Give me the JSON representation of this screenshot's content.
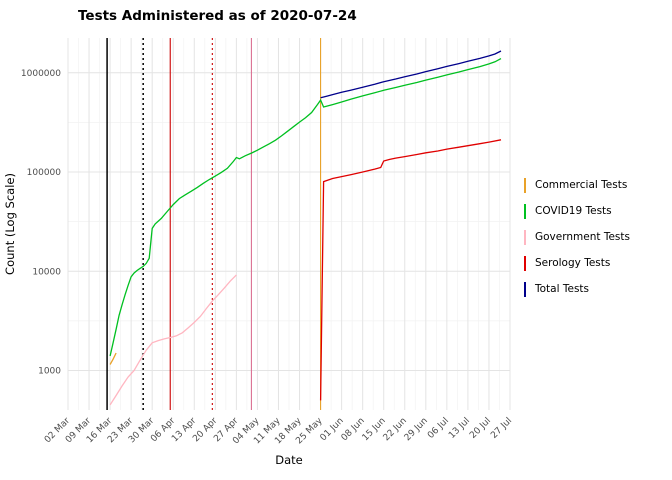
{
  "chart_data": {
    "type": "line",
    "title": "Tests Administered as of 2020-07-24",
    "xlabel": "Date",
    "ylabel": "Count (Log Scale)",
    "x_domain": [
      "2020-03-02",
      "2020-07-27"
    ],
    "ylim": [
      400,
      2240000
    ],
    "x_ticks": [
      "02 Mar",
      "09 Mar",
      "16 Mar",
      "23 Mar",
      "30 Mar",
      "06 Apr",
      "13 Apr",
      "20 Apr",
      "27 Apr",
      "04 May",
      "11 May",
      "18 May",
      "25 May",
      "01 Jun",
      "08 Jun",
      "15 Jun",
      "22 Jun",
      "29 Jun",
      "06 Jul",
      "13 Jul",
      "20 Jul",
      "27 Jul"
    ],
    "y_ticks": [
      {
        "label": "1000",
        "value": 1000
      },
      {
        "label": "10000",
        "value": 10000
      },
      {
        "label": "100000",
        "value": 100000
      },
      {
        "label": "1000000",
        "value": 1000000
      }
    ],
    "y_minor": [
      3162,
      31623,
      316228
    ],
    "grid": true,
    "legend_position": "right",
    "series": [
      {
        "name": "Commercial Tests",
        "color": "#e9a229",
        "points": [
          [
            "2020-03-16",
            1150
          ],
          [
            "2020-03-17",
            1300
          ],
          [
            "2020-03-18",
            1500
          ]
        ]
      },
      {
        "name": "COVID19 Tests",
        "color": "#00c020",
        "points": [
          [
            "2020-03-16",
            1400
          ],
          [
            "2020-03-17",
            1900
          ],
          [
            "2020-03-18",
            2600
          ],
          [
            "2020-03-19",
            3600
          ],
          [
            "2020-03-20",
            4600
          ],
          [
            "2020-03-21",
            5800
          ],
          [
            "2020-03-22",
            7200
          ],
          [
            "2020-03-23",
            8800
          ],
          [
            "2020-03-24",
            9600
          ],
          [
            "2020-03-25",
            10200
          ],
          [
            "2020-03-26",
            10700
          ],
          [
            "2020-03-27",
            11200
          ],
          [
            "2020-03-28",
            12000
          ],
          [
            "2020-03-29",
            13500
          ],
          [
            "2020-03-30",
            27000
          ],
          [
            "2020-03-31",
            30000
          ],
          [
            "2020-04-02",
            34000
          ],
          [
            "2020-04-04",
            40000
          ],
          [
            "2020-04-06",
            47000
          ],
          [
            "2020-04-08",
            54000
          ],
          [
            "2020-04-10",
            59000
          ],
          [
            "2020-04-12",
            64000
          ],
          [
            "2020-04-14",
            70000
          ],
          [
            "2020-04-16",
            77000
          ],
          [
            "2020-04-18",
            84000
          ],
          [
            "2020-04-20",
            91000
          ],
          [
            "2020-04-22",
            99000
          ],
          [
            "2020-04-24",
            109000
          ],
          [
            "2020-04-26",
            128000
          ],
          [
            "2020-04-27",
            140000
          ],
          [
            "2020-04-28",
            136000
          ],
          [
            "2020-04-30",
            146000
          ],
          [
            "2020-05-02",
            155000
          ],
          [
            "2020-05-04",
            166000
          ],
          [
            "2020-05-06",
            179000
          ],
          [
            "2020-05-08",
            193000
          ],
          [
            "2020-05-10",
            209000
          ],
          [
            "2020-05-12",
            231000
          ],
          [
            "2020-05-14",
            257000
          ],
          [
            "2020-05-16",
            286000
          ],
          [
            "2020-05-18",
            318000
          ],
          [
            "2020-05-20",
            352000
          ],
          [
            "2020-05-22",
            398000
          ],
          [
            "2020-05-24",
            480000
          ],
          [
            "2020-05-25",
            530000
          ],
          [
            "2020-05-26",
            452000
          ],
          [
            "2020-05-29",
            478000
          ],
          [
            "2020-06-01",
            508000
          ],
          [
            "2020-06-04",
            540000
          ],
          [
            "2020-06-08",
            585000
          ],
          [
            "2020-06-12",
            630000
          ],
          [
            "2020-06-15",
            665000
          ],
          [
            "2020-06-19",
            710000
          ],
          [
            "2020-06-22",
            748000
          ],
          [
            "2020-06-26",
            798000
          ],
          [
            "2020-06-29",
            843000
          ],
          [
            "2020-07-03",
            903000
          ],
          [
            "2020-07-06",
            952000
          ],
          [
            "2020-07-10",
            1018000
          ],
          [
            "2020-07-13",
            1075000
          ],
          [
            "2020-07-17",
            1155000
          ],
          [
            "2020-07-20",
            1228000
          ],
          [
            "2020-07-22",
            1290000
          ],
          [
            "2020-07-24",
            1390000
          ]
        ]
      },
      {
        "name": "Government Tests",
        "color": "#ffb6c1",
        "points": [
          [
            "2020-03-16",
            450
          ],
          [
            "2020-03-18",
            560
          ],
          [
            "2020-03-20",
            700
          ],
          [
            "2020-03-22",
            860
          ],
          [
            "2020-03-24",
            1000
          ],
          [
            "2020-03-26",
            1280
          ],
          [
            "2020-03-28",
            1600
          ],
          [
            "2020-03-30",
            1900
          ],
          [
            "2020-04-01",
            2000
          ],
          [
            "2020-04-03",
            2080
          ],
          [
            "2020-04-05",
            2150
          ],
          [
            "2020-04-07",
            2230
          ],
          [
            "2020-04-09",
            2400
          ],
          [
            "2020-04-11",
            2700
          ],
          [
            "2020-04-13",
            3050
          ],
          [
            "2020-04-15",
            3500
          ],
          [
            "2020-04-17",
            4200
          ],
          [
            "2020-04-19",
            5000
          ],
          [
            "2020-04-21",
            5800
          ],
          [
            "2020-04-23",
            6800
          ],
          [
            "2020-04-25",
            8000
          ],
          [
            "2020-04-27",
            9200
          ]
        ]
      },
      {
        "name": "Serology Tests",
        "color": "#e00000",
        "points": [
          [
            "2020-05-25",
            500
          ],
          [
            "2020-05-26",
            80000
          ],
          [
            "2020-05-29",
            86000
          ],
          [
            "2020-06-01",
            90000
          ],
          [
            "2020-06-04",
            94000
          ],
          [
            "2020-06-08",
            100000
          ],
          [
            "2020-06-12",
            107000
          ],
          [
            "2020-06-14",
            111000
          ],
          [
            "2020-06-15",
            129000
          ],
          [
            "2020-06-17",
            134000
          ],
          [
            "2020-06-19",
            138000
          ],
          [
            "2020-06-22",
            143000
          ],
          [
            "2020-06-26",
            150000
          ],
          [
            "2020-06-29",
            156000
          ],
          [
            "2020-07-03",
            163000
          ],
          [
            "2020-07-06",
            170000
          ],
          [
            "2020-07-10",
            178000
          ],
          [
            "2020-07-13",
            184000
          ],
          [
            "2020-07-17",
            193000
          ],
          [
            "2020-07-20",
            200000
          ],
          [
            "2020-07-24",
            211000
          ]
        ]
      },
      {
        "name": "Total Tests",
        "color": "#00008b",
        "points": [
          [
            "2020-05-25",
            560000
          ],
          [
            "2020-05-27",
            580000
          ],
          [
            "2020-05-29",
            602000
          ],
          [
            "2020-06-01",
            636000
          ],
          [
            "2020-06-04",
            668000
          ],
          [
            "2020-06-08",
            714000
          ],
          [
            "2020-06-12",
            766000
          ],
          [
            "2020-06-15",
            812000
          ],
          [
            "2020-06-19",
            866000
          ],
          [
            "2020-06-22",
            912000
          ],
          [
            "2020-06-26",
            972000
          ],
          [
            "2020-06-29",
            1028000
          ],
          [
            "2020-07-03",
            1098000
          ],
          [
            "2020-07-06",
            1158000
          ],
          [
            "2020-07-10",
            1236000
          ],
          [
            "2020-07-13",
            1305000
          ],
          [
            "2020-07-17",
            1396000
          ],
          [
            "2020-07-20",
            1478000
          ],
          [
            "2020-07-22",
            1545000
          ],
          [
            "2020-07-24",
            1655000
          ]
        ]
      }
    ],
    "vlines": [
      {
        "date": "2020-03-15",
        "color": "#000000",
        "style": "solid"
      },
      {
        "date": "2020-03-27",
        "color": "#000000",
        "style": "dotted"
      },
      {
        "date": "2020-04-05",
        "color": "#cc0000",
        "style": "solid"
      },
      {
        "date": "2020-04-19",
        "color": "#cc0000",
        "style": "dotted"
      },
      {
        "date": "2020-05-02",
        "color": "#db7093",
        "style": "solid"
      },
      {
        "date": "2020-05-25",
        "color": "#e9a229",
        "style": "solid"
      }
    ]
  },
  "legend": {
    "items": [
      "Commercial Tests",
      "COVID19 Tests",
      "Government Tests",
      "Serology Tests",
      "Total Tests"
    ]
  }
}
